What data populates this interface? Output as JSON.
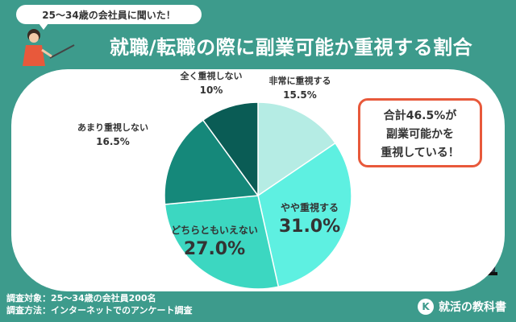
{
  "header": {
    "bubble_text": "25～34歳の会社員に聞いた！",
    "title": "就職/転職の際に副業可能か重視する割合"
  },
  "callout": {
    "line1": "合計46.5%が",
    "line2": "副業可能かを",
    "line3": "重視している！"
  },
  "footer": {
    "line1": "調査対象：25～34歳の会社員200名",
    "line2": "調査方法：インターネットでのアンケート調査"
  },
  "brand": {
    "name": "就活の教科書",
    "mark": "K"
  },
  "colors": {
    "background": "#3d9b8c",
    "accent": "#e8593b",
    "panel": "#ffffff"
  },
  "chart_data": {
    "type": "pie",
    "start": "top",
    "direction": "clockwise",
    "slices": [
      {
        "label": "非常に重視する",
        "value": 15.5,
        "display": "15.5%",
        "color": "#b5ece4"
      },
      {
        "label": "やや重視する",
        "value": 31.0,
        "display": "31.0%",
        "color": "#5ef0e1"
      },
      {
        "label": "どちらともいえない",
        "value": 27.0,
        "display": "27.0%",
        "color": "#3cd7c1"
      },
      {
        "label": "あまり重視しない",
        "value": 16.5,
        "display": "16.5%",
        "color": "#15887a"
      },
      {
        "label": "全く重視しない",
        "value": 10.0,
        "display": "10%",
        "color": "#0a5c55"
      }
    ]
  }
}
